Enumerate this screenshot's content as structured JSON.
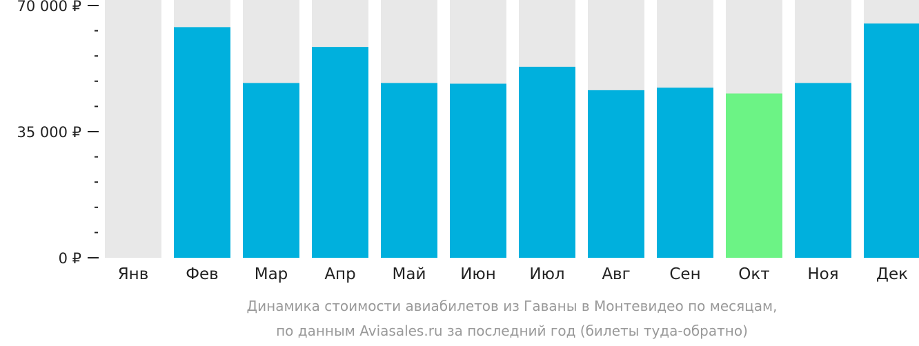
{
  "chart_data": {
    "type": "bar",
    "categories": [
      "Янв",
      "Фев",
      "Мар",
      "Апр",
      "Май",
      "Июн",
      "Июл",
      "Авг",
      "Сен",
      "Окт",
      "Ноя",
      "Дек"
    ],
    "values": [
      0,
      64000,
      48500,
      58500,
      48500,
      48300,
      53000,
      46500,
      47200,
      45600,
      48500,
      65000
    ],
    "highlight_index": 9,
    "ylim": [
      0,
      70000
    ],
    "yticks": [
      {
        "value": 0,
        "label": "0 ₽"
      },
      {
        "value": 35000,
        "label": "35 000 ₽"
      },
      {
        "value": 70000,
        "label": "70 000 ₽"
      }
    ],
    "minor_tick_step": 7000,
    "colors": {
      "bar": "#00b0dd",
      "highlight": "#6cf385",
      "background_column": "#e8e8e8",
      "axis": "#222222"
    }
  },
  "caption": {
    "line1": "Динамика стоимости авиабилетов из Гаваны в Монтевидео по месяцам,",
    "line2": "по данным Aviasales.ru за последний год (билеты туда-обратно)"
  }
}
